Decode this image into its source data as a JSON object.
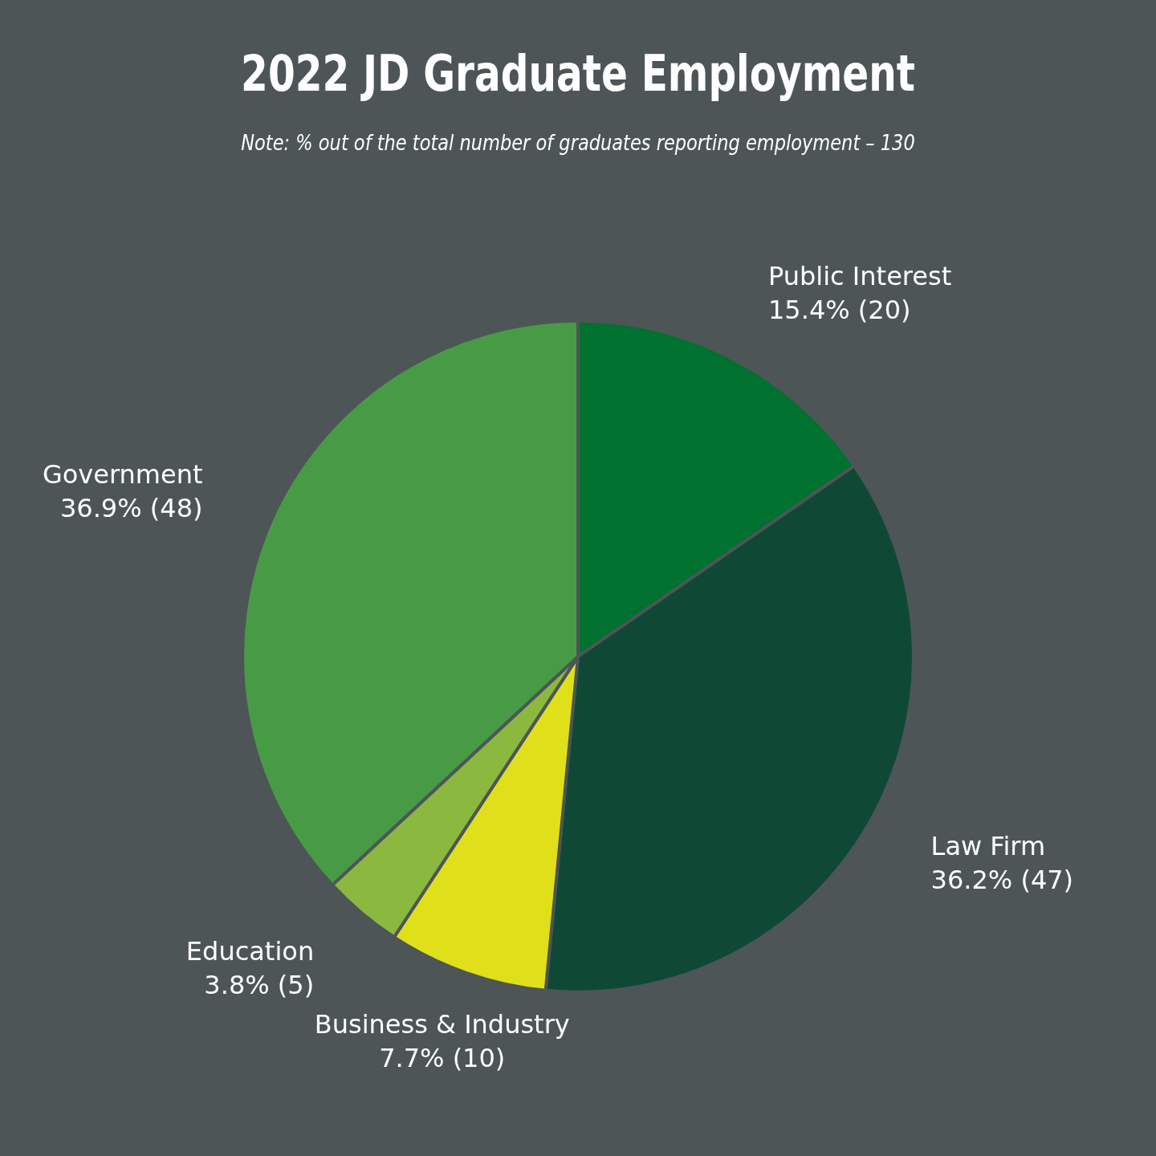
{
  "chart_data": {
    "type": "pie",
    "title": "2022 JD Graduate Employment",
    "subtitle": "Note: % out of the total number of graduates reporting employment – 130",
    "categories": [
      "Public Interest",
      "Law Firm",
      "Business & Industry",
      "Education",
      "Government"
    ],
    "values": [
      20,
      47,
      10,
      5,
      48
    ],
    "value_labels": [
      "15.4% (20)",
      "36.2% (47)",
      "7.7% (10)",
      "3.8% (5)",
      "36.9% (48)"
    ],
    "colors": [
      "#00712f",
      "#104836",
      "#dfe01a",
      "#8bb83e",
      "#489b45"
    ],
    "legend": false
  }
}
